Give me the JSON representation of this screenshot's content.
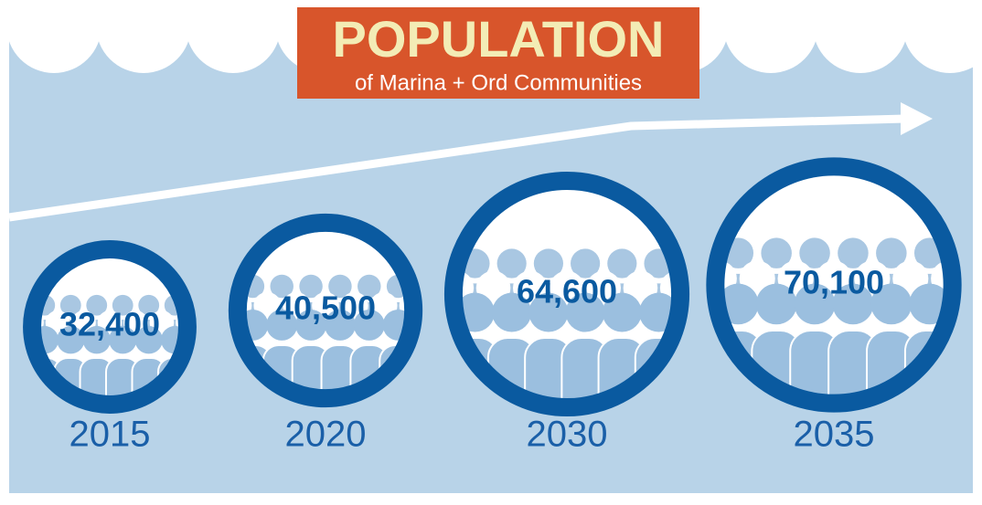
{
  "chart_data": {
    "type": "bubble",
    "title": "POPULATION",
    "subtitle": "of Marina + Ord Communities",
    "categories": [
      "2015",
      "2020",
      "2030",
      "2035"
    ],
    "values": [
      32400,
      40500,
      64600,
      70100
    ],
    "value_labels": [
      "32,400",
      "40,500",
      "64,600",
      "70,100"
    ],
    "color": "#0a5aa0"
  }
}
